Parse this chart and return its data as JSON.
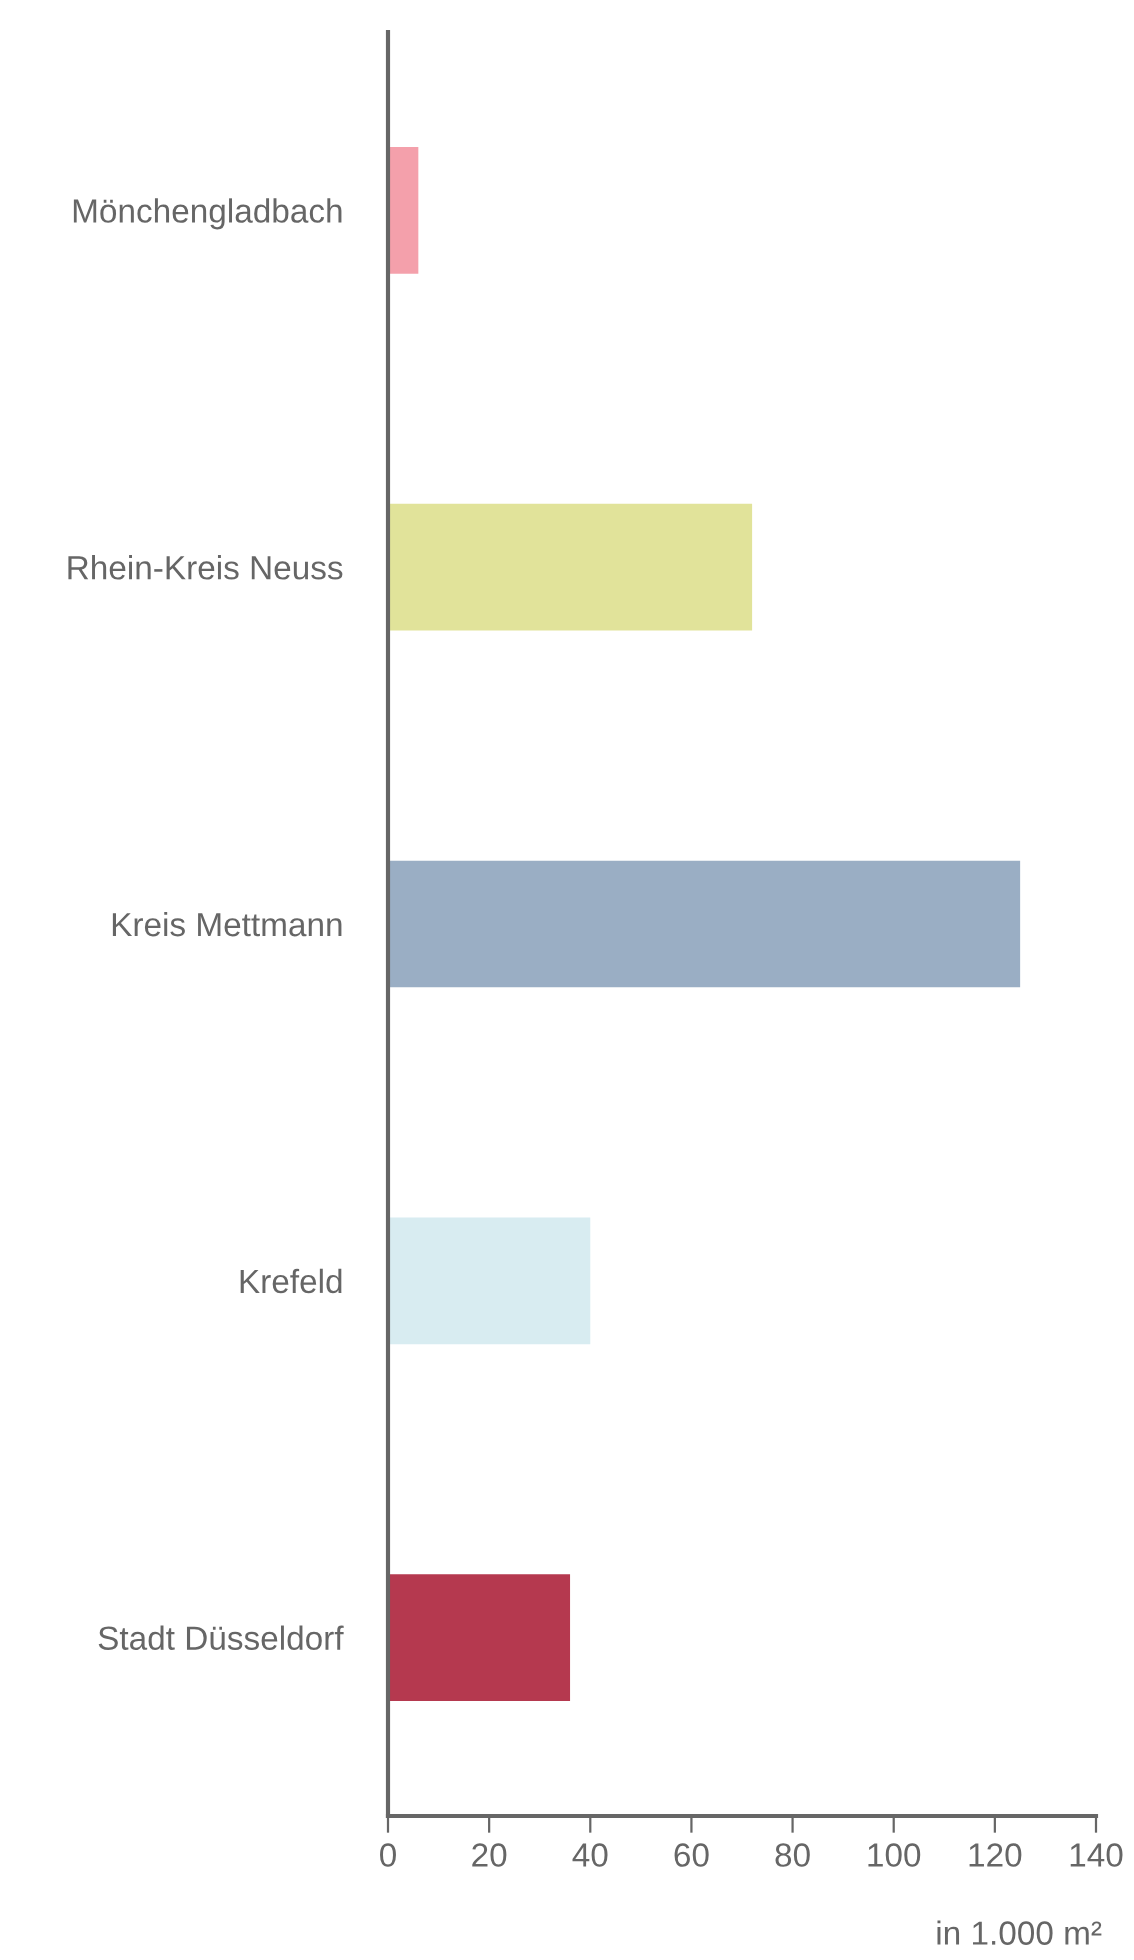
{
  "chart_data": {
    "type": "bar",
    "orientation": "horizontal",
    "xlabel": "in 1.000 m²",
    "categories": [
      "Mönchengladbach",
      "Rhein-Kreis Neuss",
      "Kreis Mettmann",
      "Krefeld",
      "Stadt Düsseldorf"
    ],
    "values": [
      6,
      72,
      125,
      40,
      36
    ],
    "colors": [
      "#f4a0ab",
      "#e1e39a",
      "#9aaec4",
      "#d8ecf1",
      "#b5394f"
    ],
    "xlim": [
      0,
      140
    ],
    "xticks": [
      0,
      20,
      40,
      60,
      80,
      100,
      120,
      140
    ],
    "grid": false,
    "legend": false
  }
}
